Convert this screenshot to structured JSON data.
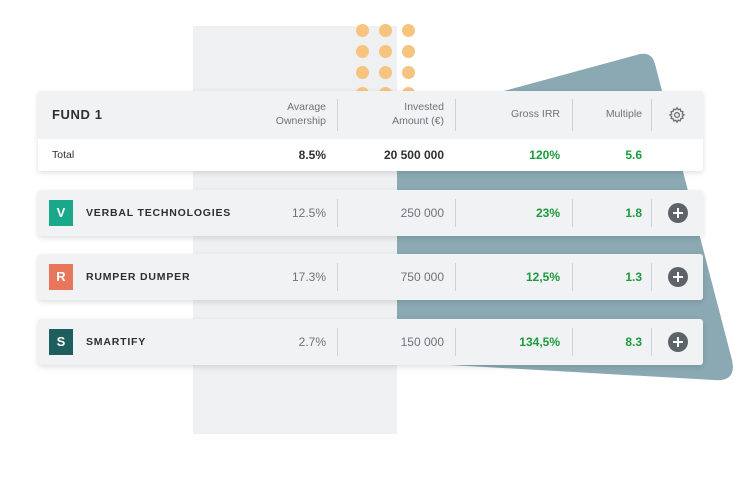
{
  "fund": {
    "title": "FUND 1",
    "headers": {
      "ownership_line1": "Avarage",
      "ownership_line2": "Ownership",
      "invested_line1": "Invested",
      "invested_line2": "Amount (€)",
      "irr": "Gross IRR",
      "multiple": "Multiple"
    },
    "total": {
      "label": "Total",
      "ownership": "8.5%",
      "invested": "20 500 000",
      "irr": "120%",
      "multiple": "5.6"
    }
  },
  "companies": [
    {
      "initial": "V",
      "name": "VERBAL TECHNOLOGIES",
      "ownership": "12.5%",
      "invested": "250 000",
      "irr": "23%",
      "multiple": "1.8",
      "color": "#1aa88a"
    },
    {
      "initial": "R",
      "name": "RUMPER DUMPER",
      "ownership": "17.3%",
      "invested": "750 000",
      "irr": "12,5%",
      "multiple": "1.3",
      "color": "#e8765a"
    },
    {
      "initial": "S",
      "name": "SMARTIFY",
      "ownership": "2.7%",
      "invested": "150 000",
      "irr": "134,5%",
      "multiple": "8.3",
      "color": "#1e5e5e"
    }
  ],
  "colors": {
    "accent_green": "#1b9a3e",
    "bg_shape": "#8ba9b2",
    "dots": "#f7c47f"
  },
  "icons": {
    "settings": "gear-icon",
    "add": "plus-circle-icon"
  }
}
